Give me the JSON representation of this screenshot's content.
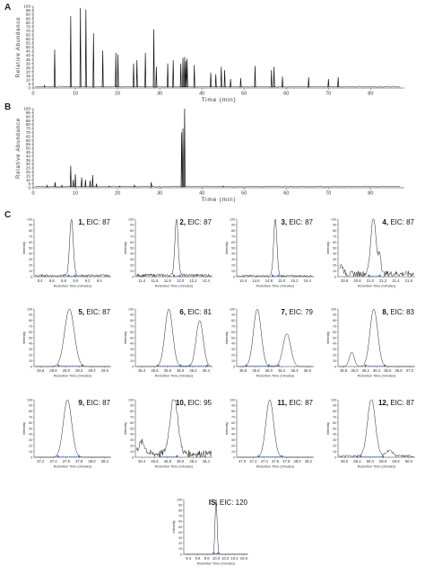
{
  "panels": {
    "A": {
      "letter": "A"
    },
    "B": {
      "letter": "B"
    },
    "C": {
      "letter": "C"
    }
  },
  "chart_data": [
    {
      "id": "A",
      "type": "line",
      "xlabel": "Time (min)",
      "ylabel": "Relative Abundance",
      "xlim": [
        0,
        88
      ],
      "ylim": [
        0,
        100
      ],
      "xticks": [
        0,
        10,
        20,
        30,
        40,
        50,
        60,
        70,
        80
      ],
      "yticks": [
        0,
        5,
        10,
        15,
        20,
        25,
        30,
        35,
        40,
        45,
        50,
        55,
        60,
        65,
        70,
        75,
        80,
        85,
        90,
        95,
        100
      ],
      "baseline": 1,
      "peaks": [
        [
          2.7,
          3
        ],
        [
          5.1,
          47
        ],
        [
          8.9,
          88
        ],
        [
          11.2,
          98
        ],
        [
          12.5,
          96
        ],
        [
          14.3,
          67
        ],
        [
          16.5,
          46
        ],
        [
          19.6,
          43
        ],
        [
          20.1,
          41
        ],
        [
          23.8,
          30
        ],
        [
          24.6,
          34
        ],
        [
          26.6,
          43
        ],
        [
          28.6,
          72
        ],
        [
          29.2,
          26
        ],
        [
          31.9,
          30
        ],
        [
          33.2,
          34
        ],
        [
          35.0,
          30
        ],
        [
          35.5,
          37
        ],
        [
          35.9,
          38
        ],
        [
          36.2,
          33
        ],
        [
          36.5,
          36
        ],
        [
          38.2,
          28
        ],
        [
          42.1,
          19
        ],
        [
          43.3,
          17
        ],
        [
          44.6,
          26
        ],
        [
          45.4,
          22
        ],
        [
          46.8,
          11
        ],
        [
          49.2,
          12
        ],
        [
          52.6,
          27
        ],
        [
          56.5,
          22
        ],
        [
          57.1,
          26
        ],
        [
          59.1,
          14
        ],
        [
          65.3,
          13
        ],
        [
          70.0,
          11
        ],
        [
          72.3,
          13
        ]
      ]
    },
    {
      "id": "B",
      "type": "line",
      "xlabel": "Time (min)",
      "ylabel": "Relative Abundance",
      "xlim": [
        0,
        88
      ],
      "ylim": [
        0,
        100
      ],
      "xticks": [
        0,
        10,
        20,
        30,
        40,
        50,
        60,
        70,
        80
      ],
      "yticks": [
        0,
        5,
        10,
        15,
        20,
        25,
        30,
        35,
        40,
        45,
        50,
        55,
        60,
        65,
        70,
        75,
        80,
        85,
        90,
        95,
        100
      ],
      "baseline": 1,
      "peaks": [
        [
          3.3,
          3
        ],
        [
          5.2,
          7
        ],
        [
          6.8,
          3
        ],
        [
          8.9,
          28
        ],
        [
          9.5,
          10
        ],
        [
          10.0,
          17
        ],
        [
          11.5,
          13
        ],
        [
          12.4,
          10
        ],
        [
          13.5,
          9
        ],
        [
          14.1,
          16
        ],
        [
          15.0,
          5
        ],
        [
          18.0,
          2
        ],
        [
          20.5,
          2
        ],
        [
          24.0,
          3
        ],
        [
          28.0,
          7
        ],
        [
          35.2,
          70
        ],
        [
          35.5,
          75
        ],
        [
          35.9,
          100
        ],
        [
          45.0,
          2
        ]
      ]
    },
    {
      "id": "C1",
      "type": "line",
      "compound": "1",
      "eic": "EIC: 87",
      "xlabel": "Retention Time (minutes)",
      "ylabel": "Intensity",
      "xlim": [
        8.3,
        9.6
      ],
      "xticks": [
        8.4,
        8.6,
        8.8,
        9.0,
        9.2,
        9.4
      ],
      "ylim": [
        0,
        100
      ],
      "yticks": [
        0,
        10,
        20,
        30,
        40,
        50,
        60,
        70,
        80,
        90,
        100
      ],
      "peaks": [
        [
          8.93,
          100,
          0.03
        ]
      ],
      "noise": 4,
      "markers": [
        8.88,
        8.99
      ]
    },
    {
      "id": "C2",
      "type": "line",
      "compound": "2",
      "eic": "EIC: 87",
      "xlabel": "Retention Time (minutes)",
      "ylabel": "Intensity",
      "xlim": [
        11.3,
        12.5
      ],
      "xticks": [
        11.4,
        11.6,
        11.8,
        12.0,
        12.2,
        12.4
      ],
      "ylim": [
        0,
        100
      ],
      "yticks": [
        0,
        10,
        20,
        30,
        40,
        50,
        60,
        70,
        80,
        90,
        100
      ],
      "peaks": [
        [
          11.94,
          100,
          0.025
        ]
      ],
      "noise": 5,
      "markers": [
        11.9,
        11.99
      ]
    },
    {
      "id": "C3",
      "type": "line",
      "compound": "3",
      "eic": "EIC: 87",
      "xlabel": "Retention Time (minutes)",
      "ylabel": "Intensity",
      "xlim": [
        14.3,
        15.5
      ],
      "xticks": [
        14.4,
        14.6,
        14.8,
        15.0,
        15.2,
        15.4
      ],
      "ylim": [
        0,
        100
      ],
      "yticks": [
        0,
        10,
        20,
        30,
        40,
        50,
        60,
        70,
        80,
        90,
        100
      ],
      "peaks": [
        [
          14.9,
          100,
          0.025
        ]
      ],
      "noise": 3,
      "markers": [
        14.86,
        14.95
      ]
    },
    {
      "id": "C4",
      "type": "line",
      "compound": "4",
      "eic": "EIC: 87",
      "xlabel": "Retention Time (minutes)",
      "ylabel": "Intensity",
      "xlim": [
        20.5,
        21.7
      ],
      "xticks": [
        20.6,
        20.8,
        21.0,
        21.2,
        21.4,
        21.6
      ],
      "ylim": [
        0,
        100
      ],
      "yticks": [
        0,
        10,
        20,
        30,
        40,
        50,
        60,
        70,
        80,
        90,
        100
      ],
      "peaks": [
        [
          21.05,
          100,
          0.04
        ],
        [
          21.15,
          35,
          0.02
        ],
        [
          20.55,
          15,
          0.03
        ]
      ],
      "noise": 10,
      "markers": [
        20.98,
        21.15
      ]
    },
    {
      "id": "C5",
      "type": "line",
      "compound": "5",
      "eic": "EIC: 87",
      "xlabel": "Retention Time (minutes)",
      "ylabel": "Intensity",
      "xlim": [
        28.5,
        29.7
      ],
      "xticks": [
        28.6,
        28.8,
        29.0,
        29.2,
        29.4,
        29.6
      ],
      "ylim": [
        0,
        100
      ],
      "yticks": [
        0,
        10,
        20,
        30,
        40,
        50,
        60,
        70,
        80,
        90,
        100
      ],
      "peaks": [
        [
          29.05,
          100,
          0.075
        ]
      ],
      "noise": 0,
      "markers": [
        28.88,
        29.25
      ]
    },
    {
      "id": "C6",
      "type": "line",
      "compound": "6",
      "eic": "EIC: 81",
      "xlabel": "Retention Time (minutes)",
      "ylabel": "Intensity",
      "xlim": [
        35.3,
        36.5
      ],
      "xticks": [
        35.4,
        35.6,
        35.8,
        36.0,
        36.2,
        36.4
      ],
      "ylim": [
        0,
        100
      ],
      "yticks": [
        0,
        10,
        20,
        30,
        40,
        50,
        60,
        70,
        80,
        90,
        100
      ],
      "peaks": [
        [
          35.82,
          100,
          0.06
        ],
        [
          36.3,
          80,
          0.055
        ]
      ],
      "noise": 0,
      "markers": [
        35.65,
        36.0,
        36.15,
        36.42
      ]
    },
    {
      "id": "C7",
      "type": "line",
      "compound": "7",
      "eic": "EIC: 79",
      "xlabel": "Retention Time (minutes)",
      "ylabel": "Intensity",
      "xlim": [
        35.5,
        36.7
      ],
      "xticks": [
        35.6,
        35.8,
        36.0,
        36.2,
        36.4,
        36.6
      ],
      "ylim": [
        0,
        100
      ],
      "yticks": [
        0,
        10,
        20,
        30,
        40,
        50,
        60,
        70,
        80,
        90,
        100
      ],
      "peaks": [
        [
          35.82,
          100,
          0.06
        ],
        [
          36.28,
          57,
          0.06
        ]
      ],
      "noise": 0,
      "markers": [
        35.65,
        36.0,
        36.15
      ]
    },
    {
      "id": "C8",
      "type": "line",
      "compound": "8",
      "eic": "EIC: 83",
      "xlabel": "Retention Time (minutes)",
      "ylabel": "Intensity",
      "xlim": [
        35.7,
        37.1
      ],
      "xticks": [
        35.8,
        36.0,
        36.2,
        36.4,
        36.6,
        36.8,
        37.0
      ],
      "ylim": [
        0,
        100
      ],
      "yticks": [
        0,
        10,
        20,
        30,
        40,
        50,
        60,
        70,
        80,
        90,
        100
      ],
      "peaks": [
        [
          36.35,
          100,
          0.07
        ],
        [
          35.95,
          25,
          0.045
        ]
      ],
      "noise": 0,
      "markers": [
        36.2,
        36.55
      ]
    },
    {
      "id": "C9",
      "type": "line",
      "compound": "9",
      "eic": "EIC: 87",
      "xlabel": "Retention Time (minutes)",
      "ylabel": "Intensity",
      "xlim": [
        37.1,
        38.3
      ],
      "xticks": [
        37.2,
        37.4,
        37.6,
        37.8,
        38.0,
        38.2
      ],
      "ylim": [
        0,
        100
      ],
      "yticks": [
        0,
        10,
        20,
        30,
        40,
        50,
        60,
        70,
        80,
        90,
        100
      ],
      "peaks": [
        [
          37.62,
          100,
          0.065
        ]
      ],
      "noise": 0,
      "markers": [
        37.47,
        37.8
      ]
    },
    {
      "id": "C10",
      "type": "line",
      "compound": "10",
      "eic": "EIC: 95",
      "xlabel": "Retention Time (minutes)",
      "ylabel": "Intensity",
      "xlim": [
        45.3,
        46.5
      ],
      "xticks": [
        45.4,
        45.6,
        45.8,
        46.0,
        46.2,
        46.4
      ],
      "ylim": [
        0,
        100
      ],
      "yticks": [
        0,
        10,
        20,
        30,
        40,
        50,
        60,
        70,
        80,
        90,
        100
      ],
      "peaks": [
        [
          45.9,
          100,
          0.06
        ],
        [
          45.4,
          20,
          0.05
        ]
      ],
      "noise": 12,
      "markers": [
        45.68,
        45.95
      ]
    },
    {
      "id": "C11",
      "type": "line",
      "compound": "11",
      "eic": "EIC: 87",
      "xlabel": "Retention Time (minutes)",
      "ylabel": "Intensity",
      "xlim": [
        46.9,
        48.3
      ],
      "xticks": [
        47.0,
        47.2,
        47.4,
        47.6,
        47.8,
        48.0,
        48.2
      ],
      "ylim": [
        0,
        100
      ],
      "yticks": [
        0,
        10,
        20,
        30,
        40,
        50,
        60,
        70,
        80,
        90,
        100
      ],
      "peaks": [
        [
          47.5,
          100,
          0.07
        ]
      ],
      "noise": 0,
      "markers": [
        47.3,
        47.72
      ]
    },
    {
      "id": "C12",
      "type": "line",
      "compound": "12",
      "eic": "EIC: 87",
      "xlabel": "Retention Time (minutes)",
      "ylabel": "Intensity",
      "xlim": [
        58.9,
        60.1
      ],
      "xticks": [
        59.0,
        59.2,
        59.4,
        59.6,
        59.8,
        60.0
      ],
      "ylim": [
        0,
        100
      ],
      "yticks": [
        0,
        10,
        20,
        30,
        40,
        50,
        60,
        70,
        80,
        90,
        100
      ],
      "peaks": [
        [
          59.42,
          100,
          0.06
        ],
        [
          59.7,
          10,
          0.05
        ]
      ],
      "noise": 4,
      "markers": [
        59.25,
        59.6
      ]
    },
    {
      "id": "CIS",
      "type": "line",
      "compound": "IS",
      "eic": "EIC: 120",
      "xlabel": "Retention Time (minutes)",
      "ylabel": "Intensity",
      "xlim": [
        9.3,
        10.7
      ],
      "xticks": [
        9.4,
        9.6,
        9.8,
        10.0,
        10.2,
        10.4,
        10.6
      ],
      "ylim": [
        0,
        100
      ],
      "yticks": [
        0,
        10,
        20,
        30,
        40,
        50,
        60,
        70,
        80,
        90,
        100
      ],
      "peaks": [
        [
          10.0,
          100,
          0.022
        ]
      ],
      "noise": 0,
      "markers": [
        9.95,
        10.05
      ]
    }
  ]
}
